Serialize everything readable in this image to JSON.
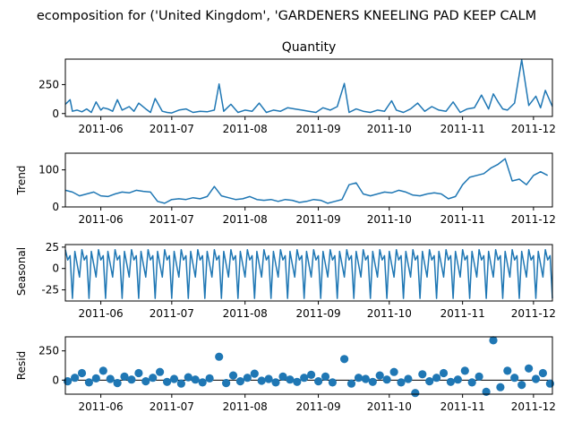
{
  "figure_title": "ecomposition for ('United Kingdom', 'GARDENERS KNEELING PAD KEEP CALM",
  "line_color": "#1f77b4",
  "x_ticks": [
    "2011-06",
    "2011-07",
    "2011-08",
    "2011-09",
    "2011-10",
    "2011-11",
    "2011-12"
  ],
  "chart_data": [
    {
      "type": "line",
      "title": "Quantity",
      "ylabel": "",
      "xlim": [
        "2011-05-17",
        "2011-12-09"
      ],
      "ylim": [
        -25,
        470
      ],
      "yticks": [
        0,
        250
      ],
      "x": [
        "2011-05-17",
        "2011-05-19",
        "2011-05-20",
        "2011-05-22",
        "2011-05-24",
        "2011-05-26",
        "2011-05-28",
        "2011-05-30",
        "2011-06-01",
        "2011-06-02",
        "2011-06-04",
        "2011-06-06",
        "2011-06-08",
        "2011-06-10",
        "2011-06-13",
        "2011-06-15",
        "2011-06-17",
        "2011-06-20",
        "2011-06-22",
        "2011-06-24",
        "2011-06-27",
        "2011-06-29",
        "2011-07-01",
        "2011-07-04",
        "2011-07-07",
        "2011-07-10",
        "2011-07-13",
        "2011-07-16",
        "2011-07-19",
        "2011-07-21",
        "2011-07-23",
        "2011-07-26",
        "2011-07-29",
        "2011-08-01",
        "2011-08-04",
        "2011-08-07",
        "2011-08-10",
        "2011-08-13",
        "2011-08-16",
        "2011-08-19",
        "2011-08-22",
        "2011-08-25",
        "2011-08-28",
        "2011-08-31",
        "2011-09-03",
        "2011-09-06",
        "2011-09-09",
        "2011-09-12",
        "2011-09-14",
        "2011-09-17",
        "2011-09-20",
        "2011-09-23",
        "2011-09-26",
        "2011-09-29",
        "2011-10-02",
        "2011-10-04",
        "2011-10-07",
        "2011-10-10",
        "2011-10-13",
        "2011-10-16",
        "2011-10-19",
        "2011-10-22",
        "2011-10-25",
        "2011-10-28",
        "2011-10-31",
        "2011-11-03",
        "2011-11-06",
        "2011-11-09",
        "2011-11-12",
        "2011-11-14",
        "2011-11-16",
        "2011-11-18",
        "2011-11-20",
        "2011-11-23",
        "2011-11-26",
        "2011-11-29",
        "2011-12-02",
        "2011-12-04",
        "2011-12-06",
        "2011-12-09"
      ],
      "values": [
        80,
        120,
        20,
        30,
        15,
        40,
        10,
        100,
        30,
        50,
        40,
        20,
        120,
        30,
        60,
        20,
        90,
        40,
        10,
        130,
        20,
        10,
        5,
        30,
        40,
        10,
        20,
        15,
        30,
        255,
        20,
        80,
        10,
        30,
        20,
        90,
        10,
        30,
        20,
        50,
        40,
        30,
        20,
        10,
        50,
        30,
        60,
        260,
        10,
        40,
        20,
        10,
        30,
        20,
        110,
        30,
        10,
        40,
        90,
        20,
        60,
        30,
        20,
        100,
        10,
        40,
        50,
        160,
        40,
        170,
        100,
        40,
        30,
        90,
        465,
        70,
        150,
        50,
        200,
        60
      ]
    },
    {
      "type": "line",
      "title": "",
      "ylabel": "Trend",
      "xlim": [
        "2011-05-17",
        "2011-12-09"
      ],
      "ylim": [
        0,
        145
      ],
      "yticks": [
        0,
        100
      ],
      "x": [
        "2011-05-17",
        "2011-05-20",
        "2011-05-23",
        "2011-05-26",
        "2011-05-29",
        "2011-06-01",
        "2011-06-04",
        "2011-06-07",
        "2011-06-10",
        "2011-06-13",
        "2011-06-16",
        "2011-06-19",
        "2011-06-22",
        "2011-06-25",
        "2011-06-28",
        "2011-07-01",
        "2011-07-04",
        "2011-07-07",
        "2011-07-10",
        "2011-07-13",
        "2011-07-16",
        "2011-07-19",
        "2011-07-22",
        "2011-07-25",
        "2011-07-28",
        "2011-07-31",
        "2011-08-03",
        "2011-08-06",
        "2011-08-09",
        "2011-08-12",
        "2011-08-15",
        "2011-08-18",
        "2011-08-21",
        "2011-08-24",
        "2011-08-27",
        "2011-08-30",
        "2011-09-02",
        "2011-09-05",
        "2011-09-08",
        "2011-09-11",
        "2011-09-14",
        "2011-09-17",
        "2011-09-20",
        "2011-09-23",
        "2011-09-26",
        "2011-09-29",
        "2011-10-02",
        "2011-10-05",
        "2011-10-08",
        "2011-10-11",
        "2011-10-14",
        "2011-10-17",
        "2011-10-20",
        "2011-10-23",
        "2011-10-26",
        "2011-10-29",
        "2011-11-01",
        "2011-11-04",
        "2011-11-07",
        "2011-11-10",
        "2011-11-13",
        "2011-11-16",
        "2011-11-19",
        "2011-11-22",
        "2011-11-25",
        "2011-11-28",
        "2011-12-01",
        "2011-12-04",
        "2011-12-07"
      ],
      "values": [
        45,
        40,
        30,
        35,
        40,
        30,
        28,
        35,
        40,
        38,
        45,
        42,
        40,
        15,
        10,
        20,
        22,
        20,
        25,
        22,
        28,
        55,
        30,
        25,
        20,
        22,
        28,
        20,
        18,
        20,
        15,
        20,
        18,
        12,
        15,
        20,
        18,
        10,
        15,
        20,
        60,
        65,
        35,
        30,
        35,
        40,
        38,
        45,
        40,
        32,
        30,
        35,
        38,
        35,
        22,
        28,
        60,
        80,
        85,
        90,
        105,
        115,
        130,
        70,
        75,
        60,
        85,
        95,
        85
      ]
    },
    {
      "type": "line",
      "title": "",
      "ylabel": "Seasonal",
      "period": 7,
      "pattern": [
        22,
        10,
        15,
        -35,
        20,
        5,
        -10
      ],
      "xlim": [
        "2011-05-17",
        "2011-12-09"
      ],
      "ylim": [
        -38,
        28
      ],
      "yticks": [
        -25,
        0,
        25
      ],
      "x_start": "2011-05-17",
      "x_end": "2011-12-09"
    },
    {
      "type": "scatter",
      "title": "",
      "ylabel": "Resid",
      "xlim": [
        "2011-05-17",
        "2011-12-09"
      ],
      "ylim": [
        -120,
        370
      ],
      "yticks": [
        0,
        250
      ],
      "x": [
        "2011-05-18",
        "2011-05-21",
        "2011-05-24",
        "2011-05-27",
        "2011-05-30",
        "2011-06-02",
        "2011-06-05",
        "2011-06-08",
        "2011-06-11",
        "2011-06-14",
        "2011-06-17",
        "2011-06-20",
        "2011-06-23",
        "2011-06-26",
        "2011-06-29",
        "2011-07-02",
        "2011-07-05",
        "2011-07-08",
        "2011-07-11",
        "2011-07-14",
        "2011-07-17",
        "2011-07-21",
        "2011-07-24",
        "2011-07-27",
        "2011-07-30",
        "2011-08-02",
        "2011-08-05",
        "2011-08-08",
        "2011-08-11",
        "2011-08-14",
        "2011-08-17",
        "2011-08-20",
        "2011-08-23",
        "2011-08-26",
        "2011-08-29",
        "2011-09-01",
        "2011-09-04",
        "2011-09-07",
        "2011-09-12",
        "2011-09-15",
        "2011-09-18",
        "2011-09-21",
        "2011-09-24",
        "2011-09-27",
        "2011-09-30",
        "2011-10-03",
        "2011-10-06",
        "2011-10-09",
        "2011-10-12",
        "2011-10-15",
        "2011-10-18",
        "2011-10-21",
        "2011-10-24",
        "2011-10-27",
        "2011-10-30",
        "2011-11-02",
        "2011-11-05",
        "2011-11-08",
        "2011-11-11",
        "2011-11-14",
        "2011-11-17",
        "2011-11-20",
        "2011-11-23",
        "2011-11-26",
        "2011-11-29",
        "2011-12-02",
        "2011-12-05",
        "2011-12-08"
      ],
      "values": [
        -10,
        20,
        60,
        -20,
        15,
        80,
        10,
        -25,
        30,
        5,
        60,
        -10,
        20,
        70,
        -15,
        10,
        -30,
        25,
        5,
        -20,
        15,
        200,
        -25,
        40,
        -10,
        20,
        55,
        -5,
        10,
        -20,
        30,
        5,
        -15,
        20,
        45,
        -10,
        30,
        -20,
        180,
        -30,
        20,
        10,
        -15,
        40,
        5,
        70,
        -20,
        10,
        -110,
        50,
        -10,
        20,
        60,
        -15,
        5,
        80,
        -20,
        30,
        -100,
        340,
        -60,
        80,
        20,
        -40,
        100,
        10,
        60,
        -30
      ]
    }
  ]
}
